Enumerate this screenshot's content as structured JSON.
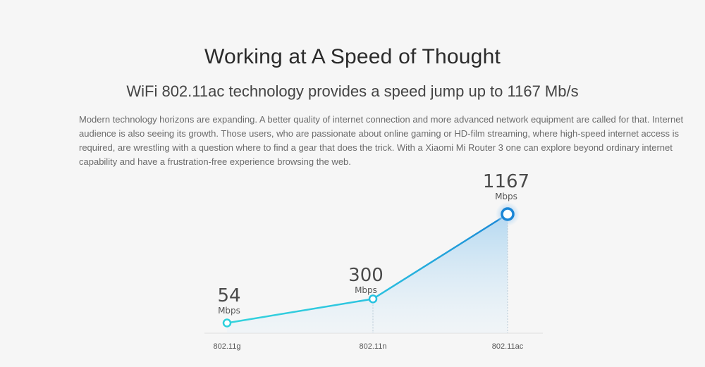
{
  "header": {
    "title": "Working at A Speed of Thought",
    "subtitle": "WiFi 802.11ac technology provides a speed jump up to 1167 Mb/s"
  },
  "description": "Modern technology horizons are expanding. A better quality of internet connection and more advanced network equipment are called for that. Internet audience is also seeing its growth. Those users, who are passionate about online gaming or HD-film streaming, where high-speed internet access is required, are wrestling with a question where to find a gear that does the trick. With a Xiaomi Mi Router 3 one can explore beyond ordinary internet capability and have a frustration-free experience browsing the web.",
  "chart_data": {
    "type": "line",
    "categories": [
      "802.11g",
      "802.11n",
      "802.11ac"
    ],
    "values": [
      54,
      300,
      1167
    ],
    "value_labels": [
      "54",
      "300",
      "1167"
    ],
    "unit": "Mbps",
    "ylim": [
      0,
      1167
    ],
    "grid": false,
    "colors": {
      "line_start": "#2fd0e0",
      "line_end": "#1a86d6",
      "area": "#bfe0f3",
      "baseline": "#dddddd"
    }
  }
}
